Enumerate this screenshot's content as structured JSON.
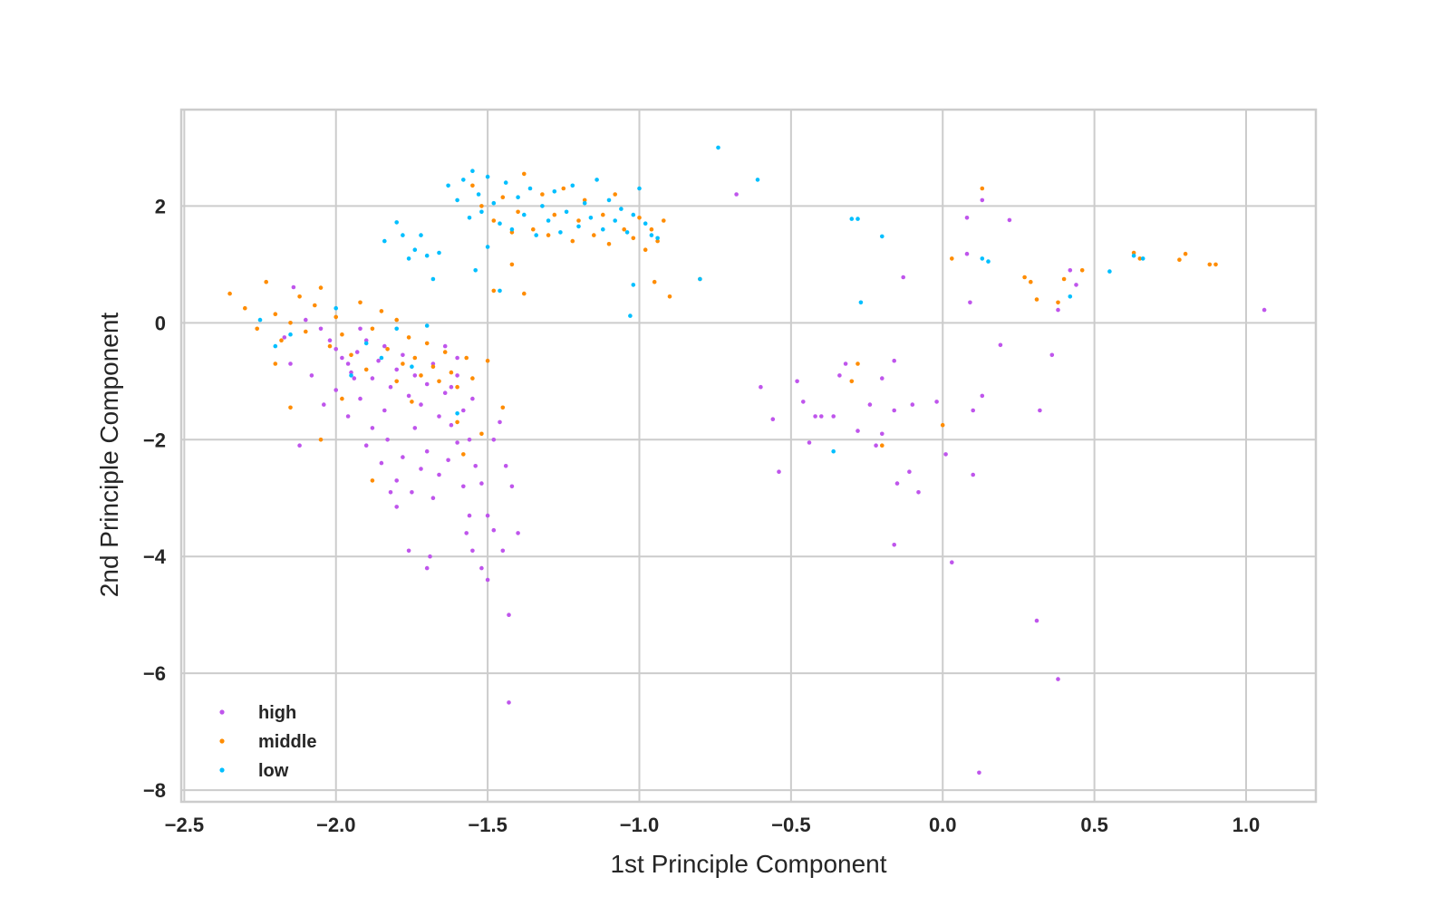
{
  "chart_data": {
    "type": "scatter",
    "title": "",
    "xlabel": "1st Principle Component",
    "ylabel": "2nd Principle Component",
    "xlim": [
      -2.51,
      1.23
    ],
    "ylim": [
      -8.2,
      3.65
    ],
    "xticks": [
      -2.5,
      -2.0,
      -1.5,
      -1.0,
      -0.5,
      0.0,
      0.5,
      1.0
    ],
    "xtick_labels": [
      "−2.5",
      "−2.0",
      "−1.5",
      "−1.0",
      "−0.5",
      "0.0",
      "0.5",
      "1.0"
    ],
    "yticks": [
      2,
      0,
      -2,
      -4,
      -6,
      -8
    ],
    "ytick_labels": [
      "2",
      "0",
      "−2",
      "−4",
      "−6",
      "−8"
    ],
    "grid": true,
    "legend_position": "lower-left",
    "series": [
      {
        "name": "high",
        "color": "#bf55ec",
        "points": [
          [
            -2.14,
            0.61
          ],
          [
            -2.1,
            0.05
          ],
          [
            -2.05,
            -0.1
          ],
          [
            -2.02,
            -0.3
          ],
          [
            -2.0,
            -0.45
          ],
          [
            -1.98,
            -0.6
          ],
          [
            -1.96,
            -0.7
          ],
          [
            -1.95,
            -0.85
          ],
          [
            -1.93,
            -0.5
          ],
          [
            -1.9,
            -0.3
          ],
          [
            -1.88,
            -0.95
          ],
          [
            -1.86,
            -0.65
          ],
          [
            -1.84,
            -0.4
          ],
          [
            -1.82,
            -1.1
          ],
          [
            -1.8,
            -0.8
          ],
          [
            -1.78,
            -0.55
          ],
          [
            -1.76,
            -1.25
          ],
          [
            -1.74,
            -0.9
          ],
          [
            -1.72,
            -1.4
          ],
          [
            -1.7,
            -1.05
          ],
          [
            -1.68,
            -0.7
          ],
          [
            -1.66,
            -1.6
          ],
          [
            -1.64,
            -1.2
          ],
          [
            -1.62,
            -1.75
          ],
          [
            -1.6,
            -0.9
          ],
          [
            -1.58,
            -1.5
          ],
          [
            -1.56,
            -2.0
          ],
          [
            -1.55,
            -1.3
          ],
          [
            -2.08,
            -0.9
          ],
          [
            -2.04,
            -1.4
          ],
          [
            -2.0,
            -1.15
          ],
          [
            -1.96,
            -1.6
          ],
          [
            -1.92,
            -1.3
          ],
          [
            -1.9,
            -2.1
          ],
          [
            -1.88,
            -1.8
          ],
          [
            -1.85,
            -2.4
          ],
          [
            -1.83,
            -2.0
          ],
          [
            -1.8,
            -2.7
          ],
          [
            -1.78,
            -2.3
          ],
          [
            -1.75,
            -2.9
          ],
          [
            -1.72,
            -2.5
          ],
          [
            -1.7,
            -2.2
          ],
          [
            -1.68,
            -3.0
          ],
          [
            -1.66,
            -2.6
          ],
          [
            -1.63,
            -2.35
          ],
          [
            -1.6,
            -2.05
          ],
          [
            -1.58,
            -2.8
          ],
          [
            -1.56,
            -3.3
          ],
          [
            -1.54,
            -2.45
          ],
          [
            -1.52,
            -2.75
          ],
          [
            -1.5,
            -3.3
          ],
          [
            -1.48,
            -2.0
          ],
          [
            -1.46,
            -1.7
          ],
          [
            -1.44,
            -2.45
          ],
          [
            -1.42,
            -2.8
          ],
          [
            -1.4,
            -3.6
          ],
          [
            -1.45,
            -3.9
          ],
          [
            -1.48,
            -3.55
          ],
          [
            -1.5,
            -4.4
          ],
          [
            -1.52,
            -4.2
          ],
          [
            -1.55,
            -3.9
          ],
          [
            -1.57,
            -3.6
          ],
          [
            -1.69,
            -4.0
          ],
          [
            -1.7,
            -4.2
          ],
          [
            -1.76,
            -3.9
          ],
          [
            -1.8,
            -3.15
          ],
          [
            -1.82,
            -2.9
          ],
          [
            -1.43,
            -5.0
          ],
          [
            -1.43,
            -6.5
          ],
          [
            -2.12,
            -2.1
          ],
          [
            -2.15,
            -0.7
          ],
          [
            -2.17,
            -0.25
          ],
          [
            -1.6,
            -0.6
          ],
          [
            -1.62,
            -1.1
          ],
          [
            -1.64,
            -0.4
          ],
          [
            -1.92,
            -0.1
          ],
          [
            -1.94,
            -0.95
          ],
          [
            -1.84,
            -1.5
          ],
          [
            -1.74,
            -1.8
          ],
          [
            -0.68,
            2.2
          ],
          [
            -0.6,
            -1.1
          ],
          [
            -0.56,
            -1.65
          ],
          [
            -0.54,
            -2.55
          ],
          [
            -0.48,
            -1.0
          ],
          [
            -0.46,
            -1.35
          ],
          [
            -0.44,
            -2.05
          ],
          [
            -0.42,
            -1.6
          ],
          [
            -0.4,
            -1.6
          ],
          [
            -0.36,
            -1.6
          ],
          [
            -0.34,
            -0.9
          ],
          [
            -0.32,
            -0.7
          ],
          [
            -0.28,
            -1.85
          ],
          [
            -0.24,
            -1.4
          ],
          [
            -0.22,
            -2.1
          ],
          [
            -0.2,
            -1.9
          ],
          [
            -0.2,
            -0.95
          ],
          [
            -0.16,
            -1.5
          ],
          [
            -0.16,
            -0.65
          ],
          [
            -0.15,
            -2.75
          ],
          [
            -0.16,
            -3.8
          ],
          [
            -0.13,
            0.78
          ],
          [
            -0.1,
            -1.4
          ],
          [
            -0.11,
            -2.55
          ],
          [
            -0.08,
            -2.9
          ],
          [
            -0.02,
            -1.35
          ],
          [
            0.01,
            -2.25
          ],
          [
            0.03,
            -4.1
          ],
          [
            0.08,
            1.18
          ],
          [
            0.09,
            0.35
          ],
          [
            0.1,
            -1.5
          ],
          [
            0.1,
            -2.6
          ],
          [
            0.12,
            -7.7
          ],
          [
            0.13,
            -1.25
          ],
          [
            0.13,
            2.1
          ],
          [
            0.19,
            -0.38
          ],
          [
            0.22,
            1.76
          ],
          [
            0.31,
            -5.1
          ],
          [
            0.32,
            -1.5
          ],
          [
            0.36,
            -0.55
          ],
          [
            0.38,
            0.22
          ],
          [
            0.38,
            -6.1
          ],
          [
            0.42,
            0.9
          ],
          [
            0.44,
            0.65
          ],
          [
            1.06,
            0.22
          ],
          [
            0.08,
            1.8
          ]
        ]
      },
      {
        "name": "middle",
        "color": "#ff8c00",
        "points": [
          [
            -2.35,
            0.5
          ],
          [
            -2.3,
            0.25
          ],
          [
            -2.26,
            -0.1
          ],
          [
            -2.23,
            0.7
          ],
          [
            -2.2,
            0.15
          ],
          [
            -2.18,
            -0.3
          ],
          [
            -2.15,
            0.0
          ],
          [
            -2.12,
            0.45
          ],
          [
            -2.1,
            -0.15
          ],
          [
            -2.07,
            0.3
          ],
          [
            -2.05,
            0.6
          ],
          [
            -2.02,
            -0.4
          ],
          [
            -2.0,
            0.1
          ],
          [
            -1.98,
            -0.2
          ],
          [
            -1.95,
            -0.55
          ],
          [
            -1.92,
            0.35
          ],
          [
            -1.9,
            -0.8
          ],
          [
            -1.88,
            -0.1
          ],
          [
            -1.85,
            0.2
          ],
          [
            -1.83,
            -0.45
          ],
          [
            -1.8,
            0.05
          ],
          [
            -1.78,
            -0.7
          ],
          [
            -1.76,
            -0.25
          ],
          [
            -1.74,
            -0.6
          ],
          [
            -1.72,
            -0.9
          ],
          [
            -1.7,
            -0.35
          ],
          [
            -1.68,
            -0.75
          ],
          [
            -1.66,
            -1.0
          ],
          [
            -1.64,
            -0.5
          ],
          [
            -1.62,
            -0.85
          ],
          [
            -1.6,
            -1.1
          ],
          [
            -1.57,
            -0.6
          ],
          [
            -1.55,
            -0.95
          ],
          [
            -1.5,
            -0.65
          ],
          [
            -1.45,
            -1.45
          ],
          [
            -2.2,
            -0.7
          ],
          [
            -2.15,
            -1.45
          ],
          [
            -2.05,
            -2.0
          ],
          [
            -1.98,
            -1.3
          ],
          [
            -1.88,
            -2.7
          ],
          [
            -1.8,
            -1.0
          ],
          [
            -1.75,
            -1.35
          ],
          [
            -1.6,
            -1.7
          ],
          [
            -1.58,
            -2.25
          ],
          [
            -1.52,
            -1.9
          ],
          [
            -1.55,
            2.35
          ],
          [
            -1.52,
            2.0
          ],
          [
            -1.48,
            1.75
          ],
          [
            -1.45,
            2.15
          ],
          [
            -1.42,
            1.55
          ],
          [
            -1.4,
            1.9
          ],
          [
            -1.38,
            2.55
          ],
          [
            -1.35,
            1.6
          ],
          [
            -1.32,
            2.2
          ],
          [
            -1.3,
            1.5
          ],
          [
            -1.28,
            1.85
          ],
          [
            -1.25,
            2.3
          ],
          [
            -1.22,
            1.4
          ],
          [
            -1.2,
            1.75
          ],
          [
            -1.18,
            2.1
          ],
          [
            -1.15,
            1.5
          ],
          [
            -1.12,
            1.85
          ],
          [
            -1.1,
            1.35
          ],
          [
            -1.08,
            2.2
          ],
          [
            -1.05,
            1.6
          ],
          [
            -1.02,
            1.45
          ],
          [
            -1.0,
            1.8
          ],
          [
            -0.98,
            1.25
          ],
          [
            -0.96,
            1.6
          ],
          [
            -0.94,
            1.4
          ],
          [
            -0.92,
            1.75
          ],
          [
            -0.9,
            0.45
          ],
          [
            -0.95,
            0.7
          ],
          [
            -1.38,
            0.5
          ],
          [
            -1.42,
            1.0
          ],
          [
            -1.48,
            0.55
          ],
          [
            -0.8,
            0.75
          ],
          [
            -0.2,
            -2.1
          ],
          [
            -0.3,
            -1.0
          ],
          [
            -0.28,
            -0.7
          ],
          [
            0.0,
            -1.75
          ],
          [
            0.03,
            1.1
          ],
          [
            0.13,
            2.3
          ],
          [
            0.27,
            0.78
          ],
          [
            0.29,
            0.7
          ],
          [
            0.31,
            0.4
          ],
          [
            0.38,
            0.35
          ],
          [
            0.4,
            0.75
          ],
          [
            0.46,
            0.9
          ],
          [
            0.63,
            1.2
          ],
          [
            0.65,
            1.1
          ],
          [
            0.78,
            1.08
          ],
          [
            0.8,
            1.18
          ],
          [
            0.88,
            1.0
          ],
          [
            0.9,
            1.0
          ]
        ]
      },
      {
        "name": "low",
        "color": "#00bfff",
        "points": [
          [
            -2.25,
            0.05
          ],
          [
            -2.2,
            -0.4
          ],
          [
            -2.15,
            -0.2
          ],
          [
            -2.0,
            0.25
          ],
          [
            -1.9,
            -0.35
          ],
          [
            -1.85,
            -0.6
          ],
          [
            -1.8,
            -0.1
          ],
          [
            -1.75,
            -0.75
          ],
          [
            -1.7,
            -0.05
          ],
          [
            -1.6,
            -1.55
          ],
          [
            -1.95,
            -0.9
          ],
          [
            -1.84,
            1.4
          ],
          [
            -1.8,
            1.72
          ],
          [
            -1.78,
            1.5
          ],
          [
            -1.76,
            1.1
          ],
          [
            -1.74,
            1.25
          ],
          [
            -1.72,
            1.5
          ],
          [
            -1.7,
            1.15
          ],
          [
            -1.68,
            0.75
          ],
          [
            -1.66,
            1.2
          ],
          [
            -1.63,
            2.35
          ],
          [
            -1.6,
            2.1
          ],
          [
            -1.58,
            2.45
          ],
          [
            -1.56,
            1.8
          ],
          [
            -1.55,
            2.6
          ],
          [
            -1.53,
            2.2
          ],
          [
            -1.52,
            1.9
          ],
          [
            -1.5,
            2.5
          ],
          [
            -1.48,
            2.05
          ],
          [
            -1.46,
            1.7
          ],
          [
            -1.44,
            2.4
          ],
          [
            -1.42,
            1.6
          ],
          [
            -1.4,
            2.15
          ],
          [
            -1.38,
            1.85
          ],
          [
            -1.36,
            2.3
          ],
          [
            -1.34,
            1.5
          ],
          [
            -1.32,
            2.0
          ],
          [
            -1.3,
            1.75
          ],
          [
            -1.28,
            2.25
          ],
          [
            -1.26,
            1.55
          ],
          [
            -1.24,
            1.9
          ],
          [
            -1.22,
            2.35
          ],
          [
            -1.2,
            1.65
          ],
          [
            -1.18,
            2.05
          ],
          [
            -1.16,
            1.8
          ],
          [
            -1.14,
            2.45
          ],
          [
            -1.12,
            1.6
          ],
          [
            -1.1,
            2.1
          ],
          [
            -1.08,
            1.75
          ],
          [
            -1.06,
            1.95
          ],
          [
            -1.04,
            1.55
          ],
          [
            -1.02,
            1.85
          ],
          [
            -1.0,
            2.3
          ],
          [
            -0.98,
            1.7
          ],
          [
            -0.96,
            1.5
          ],
          [
            -0.94,
            1.45
          ],
          [
            -1.5,
            1.3
          ],
          [
            -1.54,
            0.9
          ],
          [
            -1.46,
            0.55
          ],
          [
            -1.03,
            0.12
          ],
          [
            -1.02,
            0.65
          ],
          [
            -0.8,
            0.75
          ],
          [
            -0.74,
            3.0
          ],
          [
            -0.61,
            2.45
          ],
          [
            -0.3,
            1.78
          ],
          [
            -0.28,
            1.78
          ],
          [
            -0.27,
            0.35
          ],
          [
            -0.2,
            1.48
          ],
          [
            -0.36,
            -2.2
          ],
          [
            0.13,
            1.1
          ],
          [
            0.15,
            1.05
          ],
          [
            0.42,
            0.45
          ],
          [
            0.55,
            0.88
          ],
          [
            0.63,
            1.15
          ],
          [
            0.66,
            1.1
          ]
        ]
      }
    ]
  }
}
